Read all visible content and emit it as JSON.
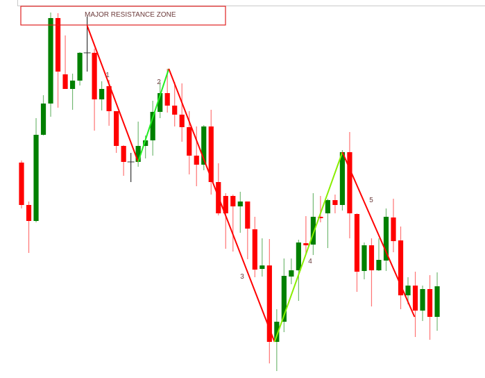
{
  "chart_data": {
    "type": "candlestick",
    "title": "",
    "xlabel": "",
    "ylabel": "",
    "grid": false,
    "value_units": "relative price (no axis printed)",
    "colors": {
      "bullish": "#008000",
      "bearish": "#ff0000",
      "doji": "#333333",
      "zigzag_down": "#ff0000",
      "zigzag_up_1": "#22ee22",
      "zigzag_up_2": "#88ee00",
      "zone_border": "#e02020",
      "label_text": "#6b3a3a"
    },
    "candles_ohlc": [
      [
        316,
        319,
        250,
        255
      ],
      [
        255,
        260,
        186,
        232
      ],
      [
        232,
        380,
        230,
        356
      ],
      [
        356,
        413,
        355,
        401
      ],
      [
        401,
        532,
        382,
        524
      ],
      [
        524,
        531,
        395,
        447
      ],
      [
        443,
        499,
        422,
        422
      ],
      [
        422,
        444,
        392,
        434
      ],
      [
        434,
        475,
        427,
        474
      ],
      [
        474,
        526,
        447,
        474
      ],
      [
        474,
        480,
        362,
        407
      ],
      [
        407,
        433,
        391,
        422
      ],
      [
        426,
        435,
        369,
        390
      ],
      [
        390,
        390,
        330,
        340
      ],
      [
        340,
        341,
        297,
        317
      ],
      [
        317,
        330,
        288,
        317
      ],
      [
        317,
        375,
        310,
        340
      ],
      [
        340,
        355,
        322,
        348
      ],
      [
        348,
        405,
        326,
        389
      ],
      [
        389,
        432,
        380,
        416
      ],
      [
        416,
        451,
        388,
        398
      ],
      [
        398,
        432,
        368,
        385
      ],
      [
        385,
        430,
        346,
        367
      ],
      [
        367,
        390,
        299,
        326
      ],
      [
        326,
        368,
        282,
        313
      ],
      [
        313,
        370,
        305,
        368
      ],
      [
        368,
        392,
        270,
        288
      ],
      [
        288,
        315,
        240,
        243
      ],
      [
        268,
        272,
        192,
        243
      ],
      [
        268,
        270,
        188,
        253
      ],
      [
        253,
        274,
        215,
        260
      ],
      [
        260,
        260,
        177,
        221
      ],
      [
        220,
        238,
        151,
        162
      ],
      [
        163,
        207,
        152,
        168
      ],
      [
        168,
        206,
        27,
        58
      ],
      [
        58,
        105,
        16,
        87
      ],
      [
        87,
        178,
        72,
        153
      ],
      [
        152,
        178,
        141,
        161
      ],
      [
        161,
        205,
        117,
        201
      ],
      [
        200,
        239,
        185,
        197
      ],
      [
        198,
        272,
        183,
        238
      ],
      [
        238,
        268,
        230,
        237
      ],
      [
        243,
        264,
        193,
        262
      ],
      [
        262,
        270,
        243,
        255
      ],
      [
        255,
        334,
        247,
        331
      ],
      [
        331,
        360,
        207,
        243
      ],
      [
        242,
        243,
        130,
        159
      ],
      [
        160,
        201,
        148,
        197
      ],
      [
        197,
        207,
        109,
        161
      ],
      [
        161,
        207,
        160,
        176
      ],
      [
        175,
        250,
        160,
        238
      ],
      [
        237,
        264,
        187,
        203
      ],
      [
        204,
        224,
        105,
        125
      ],
      [
        125,
        151,
        112,
        139
      ],
      [
        139,
        159,
        65,
        103
      ],
      [
        103,
        139,
        88,
        134
      ],
      [
        134,
        154,
        61,
        94
      ],
      [
        94,
        158,
        74,
        138
      ]
    ],
    "zigzag": [
      {
        "index": 9,
        "price": 513
      },
      {
        "index": 16,
        "price": 317
      },
      {
        "index": 20.2,
        "price": 451
      },
      {
        "index": 34.7,
        "price": 58
      },
      {
        "index": 44,
        "price": 331
      },
      {
        "index": 53.9,
        "price": 94
      }
    ],
    "wave_labels": [
      "1",
      "2",
      "3",
      "4",
      "5"
    ],
    "annotation": {
      "text": "MAJOR RESISTANCE ZONE",
      "price_top": 541,
      "price_bottom": 514
    }
  }
}
